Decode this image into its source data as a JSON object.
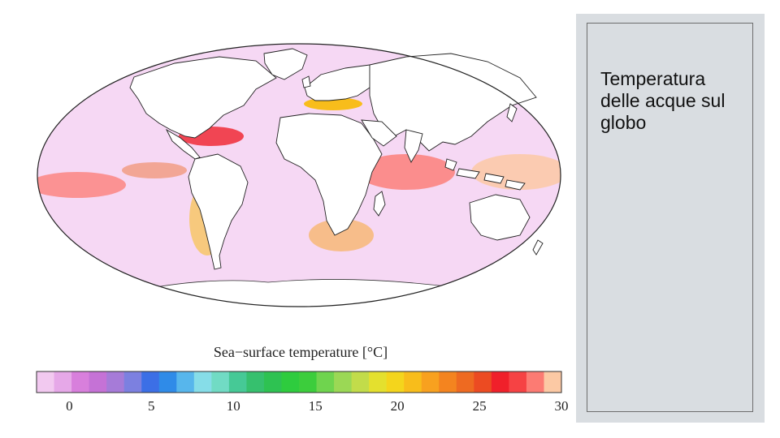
{
  "slide": {
    "title": "Temperatura delle acque sul globo"
  },
  "map": {
    "projection": "Mollweide",
    "variable": "sea-surface temperature",
    "legend": {
      "title": "Sea−surface temperature [°C]",
      "tick_labels": [
        "0",
        "5",
        "10",
        "15",
        "20",
        "25",
        "30"
      ],
      "min": -2,
      "max": 30,
      "step": 1,
      "colors": [
        "#f2c9f0",
        "#e6a8e8",
        "#d87fdc",
        "#c572d6",
        "#a67bd8",
        "#7c80e0",
        "#3c6fe6",
        "#2f8be8",
        "#57b6ec",
        "#86dde8",
        "#71dbc4",
        "#46c996",
        "#36c06e",
        "#2ec252",
        "#2ecc3e",
        "#3ccd3c",
        "#6fd44e",
        "#9bd855",
        "#c2dc4a",
        "#e4e02e",
        "#f4d51c",
        "#f8bd1b",
        "#f8a11f",
        "#f4841f",
        "#ee6a21",
        "#ec4b22",
        "#f0202a",
        "#f64244",
        "#fc7b73",
        "#fcc9a4"
      ]
    }
  }
}
